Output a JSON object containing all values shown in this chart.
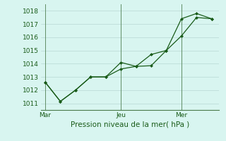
{
  "xlabel": "Pression niveau de la mer( hPa )",
  "bg_color": "#cceee8",
  "plot_bg_color": "#d8f5f0",
  "line_color": "#1a5c1a",
  "grid_color": "#b8d8d4",
  "vline_color": "#4a7a4a",
  "ylim": [
    1010.5,
    1018.5
  ],
  "yticks": [
    1011,
    1012,
    1013,
    1014,
    1015,
    1016,
    1017,
    1018
  ],
  "xtick_labels": [
    "Mar",
    "Jeu",
    "Mer"
  ],
  "xtick_positions": [
    0.0,
    0.458,
    0.792
  ],
  "vline_positions": [
    0.0,
    0.458,
    0.792
  ],
  "line1_x": [
    0,
    1,
    2,
    3,
    4,
    5,
    6,
    7,
    8,
    9,
    10,
    11
  ],
  "line1_y": [
    1012.6,
    1011.15,
    1012.0,
    1013.0,
    1013.0,
    1013.6,
    1013.8,
    1013.85,
    1015.0,
    1016.1,
    1017.5,
    1017.4
  ],
  "line2_x": [
    0,
    1,
    2,
    3,
    4,
    5,
    6,
    7,
    8,
    9,
    10,
    11
  ],
  "line2_y": [
    1012.6,
    1011.15,
    1012.0,
    1013.0,
    1013.0,
    1014.1,
    1013.8,
    1014.7,
    1015.0,
    1017.4,
    1017.8,
    1017.4
  ],
  "xlim": [
    -0.3,
    11.5
  ],
  "ylabel_fontsize": 6.5,
  "xlabel_fontsize": 7.5,
  "tick_fontsize": 6.5
}
